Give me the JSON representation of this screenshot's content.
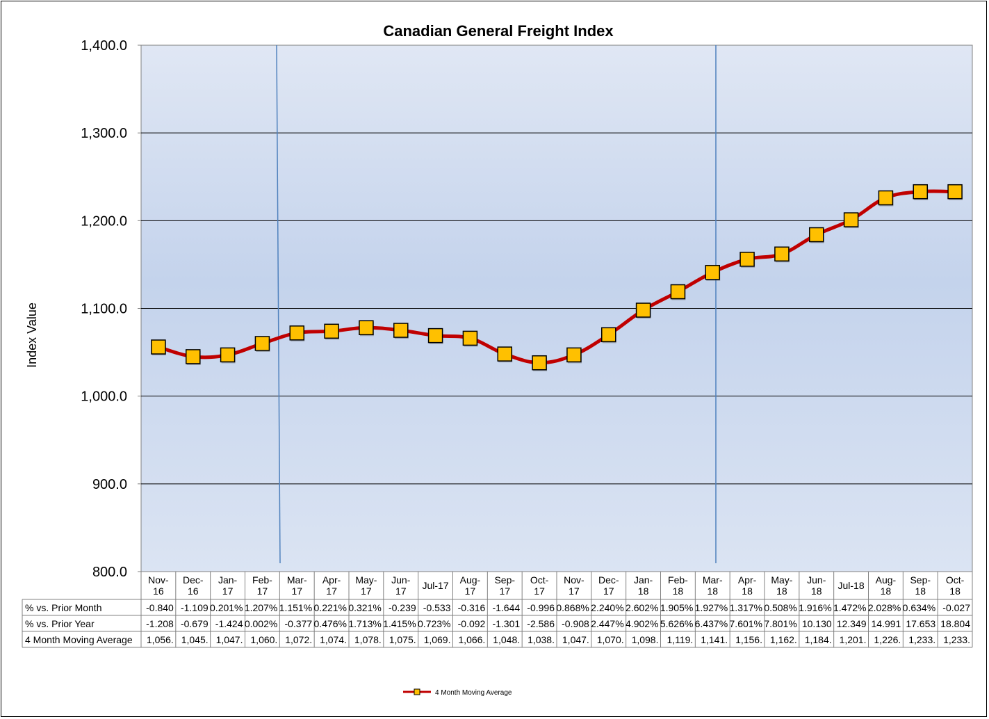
{
  "chart_data": {
    "type": "line",
    "title": "Canadian General Freight Index",
    "xlabel": "",
    "ylabel": "Index Value",
    "ylim": [
      800,
      1400
    ],
    "yticks": [
      "1,400.0",
      "1,300.0",
      "1,200.0",
      "1,100.0",
      "1,000.0",
      "900.0",
      "800.0"
    ],
    "grid": true,
    "legend_position": "bottom-center",
    "colors": {
      "line": "#c00000",
      "marker_fill": "#ffc000",
      "marker_border": "#000000",
      "plot_top": "#dfe6f3",
      "plot_mid": "#c3d3ec",
      "divider": "#4f81bd"
    },
    "categories": [
      [
        "Nov-",
        "16"
      ],
      [
        "Dec-",
        "16"
      ],
      [
        "Jan-",
        "17"
      ],
      [
        "Feb-",
        "17"
      ],
      [
        "Mar-",
        "17"
      ],
      [
        "Apr-",
        "17"
      ],
      [
        "May-",
        "17"
      ],
      [
        "Jun-",
        "17"
      ],
      [
        "Jul-17"
      ],
      [
        "Aug-",
        "17"
      ],
      [
        "Sep-",
        "17"
      ],
      [
        "Oct-",
        "17"
      ],
      [
        "Nov-",
        "17"
      ],
      [
        "Dec-",
        "17"
      ],
      [
        "Jan-",
        "18"
      ],
      [
        "Feb-",
        "18"
      ],
      [
        "Mar-",
        "18"
      ],
      [
        "Apr-",
        "18"
      ],
      [
        "May-",
        "18"
      ],
      [
        "Jun-",
        "18"
      ],
      [
        "Jul-18"
      ],
      [
        "Aug-",
        "18"
      ],
      [
        "Sep-",
        "18"
      ],
      [
        "Oct-",
        "18"
      ]
    ],
    "vertical_markers": [
      "Mar-17",
      "Mar-18"
    ],
    "series": [
      {
        "name": "4 Month Moving Average",
        "values": [
          1056,
          1045,
          1047,
          1060,
          1072,
          1074,
          1078,
          1075,
          1069,
          1066,
          1048,
          1038,
          1047,
          1070,
          1098,
          1119,
          1141,
          1156,
          1162,
          1184,
          1201,
          1226,
          1233,
          1233
        ]
      }
    ],
    "table": {
      "rows": [
        {
          "label": "% vs. Prior Month",
          "cells": [
            "-0.840",
            "-1.109",
            "0.201%",
            "1.207%",
            "1.151%",
            "0.221%",
            "0.321%",
            "-0.239",
            "-0.533",
            "-0.316",
            "-1.644",
            "-0.996",
            "0.868%",
            "2.240%",
            "2.602%",
            "1.905%",
            "1.927%",
            "1.317%",
            "0.508%",
            "1.916%",
            "1.472%",
            "2.028%",
            "0.634%",
            "-0.027"
          ]
        },
        {
          "label": "% vs. Prior Year",
          "cells": [
            "-1.208",
            "-0.679",
            "-1.424",
            "0.002%",
            "-0.377",
            "0.476%",
            "1.713%",
            "1.415%",
            "0.723%",
            "-0.092",
            "-1.301",
            "-2.586",
            "-0.908",
            "2.447%",
            "4.902%",
            "5.626%",
            "6.437%",
            "7.601%",
            "7.801%",
            "10.130",
            "12.349",
            "14.991",
            "17.653",
            "18.804"
          ]
        },
        {
          "label": "4 Month Moving Average",
          "cells": [
            "1,056.",
            "1,045.",
            "1,047.",
            "1,060.",
            "1,072.",
            "1,074.",
            "1,078.",
            "1,075.",
            "1,069.",
            "1,066.",
            "1,048.",
            "1,038.",
            "1,047.",
            "1,070.",
            "1,098.",
            "1,119.",
            "1,141.",
            "1,156.",
            "1,162.",
            "1,184.",
            "1,201.",
            "1,226.",
            "1,233.",
            "1,233."
          ]
        }
      ]
    }
  }
}
